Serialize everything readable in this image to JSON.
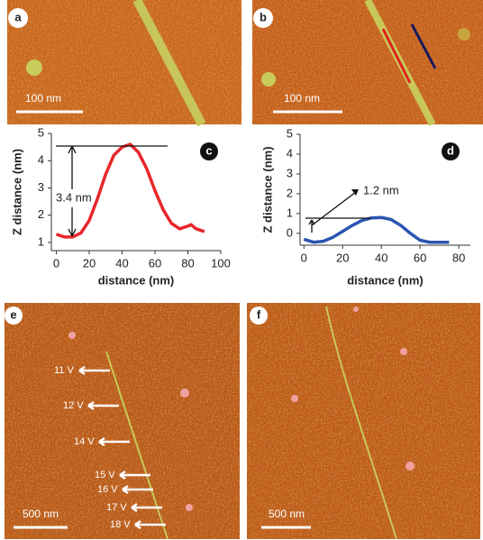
{
  "panels": {
    "a": {
      "label": "a",
      "scale_bar": "100 nm"
    },
    "b": {
      "label": "b",
      "scale_bar": "100 nm"
    },
    "e": {
      "label": "e",
      "scale_bar": "500 nm",
      "voltages": [
        "11 V",
        "12 V",
        "14 V",
        "15 V",
        "16 V",
        "17 V",
        "18 V"
      ]
    },
    "f": {
      "label": "f",
      "scale_bar": "500 nm"
    }
  },
  "chart_data": [
    {
      "type": "line",
      "label": "c",
      "xlabel": "distance (nm)",
      "ylabel": "Z distance (nm)",
      "annotation": "3.4 nm",
      "x": [
        0,
        5,
        10,
        15,
        20,
        25,
        30,
        35,
        40,
        45,
        50,
        55,
        60,
        65,
        70,
        75,
        80,
        82,
        85,
        90
      ],
      "series": [
        {
          "color": "#e8262a",
          "values": [
            1.3,
            1.2,
            1.2,
            1.35,
            1.8,
            2.6,
            3.5,
            4.2,
            4.5,
            4.6,
            4.3,
            3.7,
            2.9,
            2.2,
            1.7,
            1.5,
            1.6,
            1.65,
            1.5,
            1.4
          ]
        }
      ],
      "xlim": [
        -3,
        100
      ],
      "ylim": [
        0.7,
        5
      ],
      "xticks": [
        0,
        20,
        40,
        60,
        80,
        100
      ],
      "yticks": [
        1,
        2,
        3,
        4,
        5
      ]
    },
    {
      "type": "line",
      "label": "d",
      "xlabel": "distance (nm)",
      "ylabel": "Z distance (nm)",
      "annotation": "1.2 nm",
      "x": [
        0,
        5,
        10,
        15,
        20,
        25,
        30,
        35,
        40,
        45,
        50,
        55,
        60,
        65,
        75
      ],
      "series": [
        {
          "color": "#2a55b0",
          "values": [
            -0.3,
            -0.45,
            -0.4,
            -0.2,
            0.1,
            0.4,
            0.65,
            0.78,
            0.8,
            0.7,
            0.4,
            0.0,
            -0.35,
            -0.45,
            -0.45
          ]
        }
      ],
      "xlim": [
        -2,
        86
      ],
      "ylim": [
        -0.6,
        5
      ],
      "xticks": [
        0,
        20,
        40,
        60,
        80
      ],
      "yticks": [
        0,
        1,
        2,
        3,
        4,
        5
      ]
    }
  ]
}
